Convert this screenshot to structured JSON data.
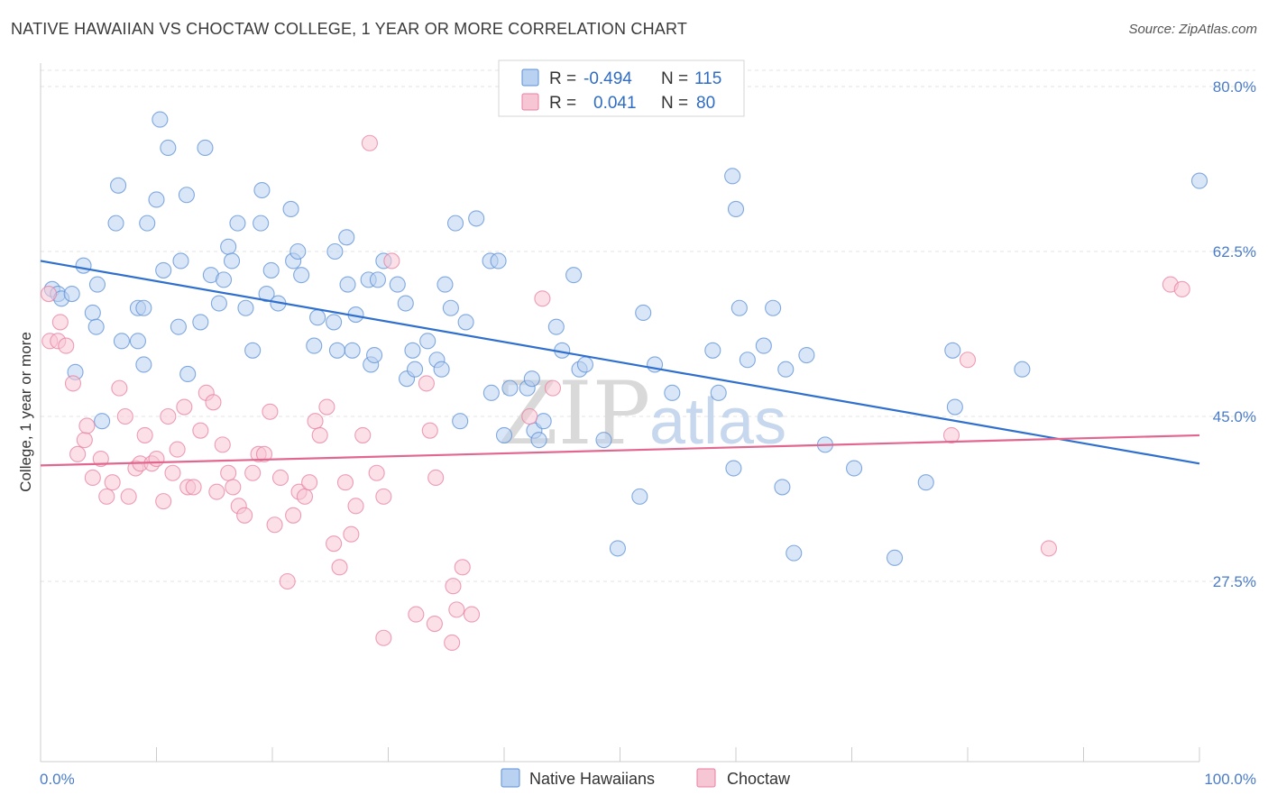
{
  "header": {
    "title": "NATIVE HAWAIIAN VS CHOCTAW COLLEGE, 1 YEAR OR MORE CORRELATION CHART",
    "source": "Source: ZipAtlas.com"
  },
  "legend_top": {
    "rows": [
      {
        "r_label": "R =",
        "r_value": "-0.494",
        "n_label": "N =",
        "n_value": "115",
        "color": "#9ec1ea"
      },
      {
        "r_label": "R =",
        "r_value": "0.041",
        "n_label": "N =",
        "n_value": "80",
        "color": "#f5b3c6"
      }
    ]
  },
  "watermark": {
    "zip": "ZIP",
    "atlas": "atlas"
  },
  "chart_data": {
    "type": "scatter",
    "title": "NATIVE HAWAIIAN VS CHOCTAW COLLEGE, 1 YEAR OR MORE CORRELATION CHART",
    "xlabel": "",
    "ylabel": "College, 1 year or more",
    "xlim": [
      0,
      100
    ],
    "ylim": [
      10,
      83
    ],
    "y_ticks": [
      27.5,
      45.0,
      62.5,
      80.0
    ],
    "y_tick_labels": [
      "27.5%",
      "45.0%",
      "62.5%",
      "80.0%"
    ],
    "x_tick_labels": [
      "0.0%",
      "100.0%"
    ],
    "grid": true,
    "series": [
      {
        "name": "Native Hawaiians",
        "color": "#5b8fd6",
        "fill": "#b9d2f1",
        "trend": {
          "x0": 0,
          "y0": 61.5,
          "x1": 100,
          "y1": 40.0,
          "color": "#2f6fce"
        },
        "points": [
          [
            1,
            58.5
          ],
          [
            1.5,
            58
          ],
          [
            1.8,
            57.5
          ],
          [
            2.7,
            58
          ],
          [
            3,
            49.7
          ],
          [
            3.7,
            61
          ],
          [
            4.5,
            56
          ],
          [
            4.8,
            54.5
          ],
          [
            4.9,
            59
          ],
          [
            5.3,
            44.5
          ],
          [
            6.5,
            65.5
          ],
          [
            6.7,
            69.5
          ],
          [
            7,
            53
          ],
          [
            8.4,
            53
          ],
          [
            8.4,
            56.5
          ],
          [
            8.9,
            56.5
          ],
          [
            8.9,
            50.5
          ],
          [
            9.2,
            65.5
          ],
          [
            10,
            68
          ],
          [
            10.3,
            76.5
          ],
          [
            10.6,
            60.5
          ],
          [
            11,
            73.5
          ],
          [
            11.9,
            54.5
          ],
          [
            12.1,
            61.5
          ],
          [
            12.6,
            68.5
          ],
          [
            12.7,
            49.5
          ],
          [
            13.8,
            55
          ],
          [
            14.2,
            73.5
          ],
          [
            14.7,
            60
          ],
          [
            15.4,
            57
          ],
          [
            15.8,
            59.5
          ],
          [
            16.2,
            63
          ],
          [
            16.5,
            61.5
          ],
          [
            17,
            65.5
          ],
          [
            17.7,
            56.5
          ],
          [
            18.3,
            52
          ],
          [
            19,
            65.5
          ],
          [
            19.1,
            69
          ],
          [
            19.5,
            58
          ],
          [
            19.9,
            60.5
          ],
          [
            20.5,
            57
          ],
          [
            21.6,
            67
          ],
          [
            21.8,
            61.5
          ],
          [
            22.2,
            62.5
          ],
          [
            22.5,
            60
          ],
          [
            23.6,
            52.5
          ],
          [
            23.9,
            55.5
          ],
          [
            25.3,
            55
          ],
          [
            25.4,
            62.5
          ],
          [
            25.6,
            52
          ],
          [
            26.4,
            64
          ],
          [
            26.5,
            59
          ],
          [
            26.9,
            52
          ],
          [
            27.2,
            55.8
          ],
          [
            28.3,
            59.5
          ],
          [
            28.5,
            50.5
          ],
          [
            28.8,
            51.5
          ],
          [
            29.1,
            59.5
          ],
          [
            29.6,
            61.5
          ],
          [
            30.8,
            59
          ],
          [
            31.5,
            57
          ],
          [
            31.6,
            49
          ],
          [
            32.1,
            52
          ],
          [
            32.3,
            50
          ],
          [
            33.4,
            53
          ],
          [
            34.2,
            51
          ],
          [
            34.6,
            50
          ],
          [
            34.9,
            59
          ],
          [
            35.4,
            56.5
          ],
          [
            35.8,
            65.5
          ],
          [
            36.2,
            44.5
          ],
          [
            36.7,
            55
          ],
          [
            37.6,
            66
          ],
          [
            38.8,
            61.5
          ],
          [
            38.9,
            47.5
          ],
          [
            39.5,
            61.5
          ],
          [
            40.5,
            48
          ],
          [
            42,
            48
          ],
          [
            42.4,
            49
          ],
          [
            42.6,
            43.5
          ],
          [
            43,
            42.5
          ],
          [
            43.4,
            44.5
          ],
          [
            44.5,
            54.5
          ],
          [
            45,
            52
          ],
          [
            46.5,
            50
          ],
          [
            47,
            50.5
          ],
          [
            48.6,
            42.5
          ],
          [
            49.8,
            31
          ],
          [
            51.7,
            36.5
          ],
          [
            53,
            50.5
          ],
          [
            54.5,
            47.5
          ],
          [
            58,
            52
          ],
          [
            58.5,
            47.5
          ],
          [
            59.7,
            70.5
          ],
          [
            59.8,
            39.5
          ],
          [
            60.3,
            56.5
          ],
          [
            61,
            51
          ],
          [
            62.4,
            52.5
          ],
          [
            63.2,
            56.5
          ],
          [
            64,
            37.5
          ],
          [
            64.3,
            50
          ],
          [
            65,
            30.5
          ],
          [
            66.1,
            51.5
          ],
          [
            67.7,
            42
          ],
          [
            70.2,
            39.5
          ],
          [
            73.7,
            30
          ],
          [
            76.4,
            38
          ],
          [
            78.9,
            46
          ],
          [
            78.7,
            52
          ],
          [
            84.7,
            50
          ],
          [
            100,
            70
          ],
          [
            40,
            43
          ],
          [
            46,
            60
          ],
          [
            52,
            56
          ],
          [
            60,
            67
          ]
        ]
      },
      {
        "name": "Choctaw",
        "color": "#e87fa0",
        "fill": "#f7c6d5",
        "trend": {
          "x0": 0,
          "y0": 39.8,
          "x1": 100,
          "y1": 43.0,
          "color": "#e2678f"
        },
        "points": [
          [
            0.7,
            58
          ],
          [
            0.8,
            53
          ],
          [
            1.5,
            53
          ],
          [
            1.7,
            55
          ],
          [
            2.2,
            52.5
          ],
          [
            2.8,
            48.5
          ],
          [
            3.2,
            41
          ],
          [
            3.8,
            42.5
          ],
          [
            4,
            44
          ],
          [
            4.5,
            38.5
          ],
          [
            5.2,
            40.5
          ],
          [
            5.7,
            36.5
          ],
          [
            6.2,
            38
          ],
          [
            6.8,
            48
          ],
          [
            7.3,
            45
          ],
          [
            7.6,
            36.5
          ],
          [
            8.2,
            39.5
          ],
          [
            8.6,
            40
          ],
          [
            9,
            43
          ],
          [
            9.6,
            40
          ],
          [
            10,
            40.5
          ],
          [
            10.6,
            36
          ],
          [
            11,
            45
          ],
          [
            11.4,
            39
          ],
          [
            11.8,
            41.5
          ],
          [
            12.4,
            46
          ],
          [
            12.7,
            37.5
          ],
          [
            13.2,
            37.5
          ],
          [
            13.8,
            43.5
          ],
          [
            14.3,
            47.5
          ],
          [
            14.9,
            46.5
          ],
          [
            15.2,
            37
          ],
          [
            15.7,
            42
          ],
          [
            16.2,
            39
          ],
          [
            16.6,
            37.5
          ],
          [
            17.1,
            35.5
          ],
          [
            17.6,
            34.5
          ],
          [
            18.3,
            39
          ],
          [
            18.8,
            41
          ],
          [
            19.3,
            41
          ],
          [
            19.8,
            45.5
          ],
          [
            20.2,
            33.5
          ],
          [
            20.7,
            38.5
          ],
          [
            21.3,
            27.5
          ],
          [
            21.8,
            34.5
          ],
          [
            22.3,
            37
          ],
          [
            22.8,
            36.5
          ],
          [
            23.2,
            38
          ],
          [
            23.7,
            44.5
          ],
          [
            24.1,
            43
          ],
          [
            24.7,
            46
          ],
          [
            25.3,
            31.5
          ],
          [
            25.8,
            29
          ],
          [
            26.3,
            38
          ],
          [
            26.8,
            32.5
          ],
          [
            27.2,
            35.5
          ],
          [
            27.8,
            43
          ],
          [
            28.4,
            74
          ],
          [
            29,
            39
          ],
          [
            29.6,
            36.5
          ],
          [
            29.6,
            21.5
          ],
          [
            30.3,
            61.5
          ],
          [
            32.4,
            24
          ],
          [
            33.3,
            48.5
          ],
          [
            33.6,
            43.5
          ],
          [
            34.1,
            38.5
          ],
          [
            35.5,
            21
          ],
          [
            35.6,
            27
          ],
          [
            35.9,
            24.5
          ],
          [
            36.4,
            29
          ],
          [
            37.2,
            24
          ],
          [
            42.2,
            45
          ],
          [
            43.3,
            57.5
          ],
          [
            44.2,
            48
          ],
          [
            78.6,
            43
          ],
          [
            87,
            31
          ],
          [
            80,
            51
          ],
          [
            97.5,
            59
          ],
          [
            98.5,
            58.5
          ],
          [
            34,
            23
          ]
        ]
      }
    ]
  },
  "legend_bottom": {
    "items": [
      {
        "label": "Native Hawaiians",
        "color": "#9ec1ea"
      },
      {
        "label": "Choctaw",
        "color": "#f5b3c6"
      }
    ]
  }
}
